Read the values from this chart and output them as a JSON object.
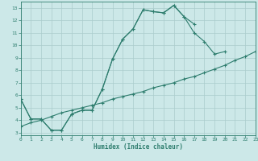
{
  "line1": {
    "x": [
      0,
      1,
      2,
      3,
      4,
      5,
      6,
      7,
      8,
      9,
      10,
      11,
      12,
      13,
      14,
      15,
      16,
      17,
      18,
      19,
      20,
      21,
      22,
      23
    ],
    "y": [
      5.7,
      4.1,
      4.1,
      3.2,
      3.2,
      4.5,
      4.8,
      4.8,
      6.5,
      8.9,
      10.5,
      11.3,
      12.85,
      12.7,
      12.6,
      13.2,
      12.3,
      11.0,
      10.3,
      9.3,
      9.5,
      null,
      null,
      null
    ]
  },
  "line2": {
    "x": [
      0,
      1,
      2,
      3,
      4,
      5,
      6,
      7,
      8,
      9,
      10,
      11,
      12,
      13,
      14,
      15,
      16,
      17,
      18,
      19,
      20,
      21,
      22,
      23
    ],
    "y": [
      5.7,
      4.1,
      4.1,
      3.2,
      3.2,
      4.5,
      4.8,
      4.8,
      6.5,
      8.9,
      10.5,
      11.3,
      12.85,
      12.7,
      12.6,
      13.2,
      12.3,
      11.7,
      null,
      null,
      null,
      null,
      null,
      null
    ]
  },
  "line3": {
    "x": [
      0,
      1,
      2,
      3,
      4,
      5,
      6,
      7,
      8,
      9,
      10,
      11,
      12,
      13,
      14,
      15,
      16,
      17,
      18,
      19,
      20,
      21,
      22,
      23
    ],
    "y": [
      3.5,
      3.8,
      4.0,
      4.3,
      4.6,
      4.8,
      5.0,
      5.2,
      5.4,
      5.7,
      5.9,
      6.1,
      6.3,
      6.6,
      6.8,
      7.0,
      7.3,
      7.5,
      7.8,
      8.1,
      8.4,
      8.8,
      9.1,
      9.5
    ]
  },
  "line_color": "#2e7d6e",
  "bg_color": "#cce8e8",
  "grid_color": "#aacccc",
  "xlabel": "Humidex (Indice chaleur)",
  "xlim": [
    0,
    23
  ],
  "ylim": [
    2.8,
    13.5
  ],
  "xticks": [
    0,
    1,
    2,
    3,
    4,
    5,
    6,
    7,
    8,
    9,
    10,
    11,
    12,
    13,
    14,
    15,
    16,
    17,
    18,
    19,
    20,
    21,
    22,
    23
  ],
  "yticks": [
    3,
    4,
    5,
    6,
    7,
    8,
    9,
    10,
    11,
    12,
    13
  ]
}
